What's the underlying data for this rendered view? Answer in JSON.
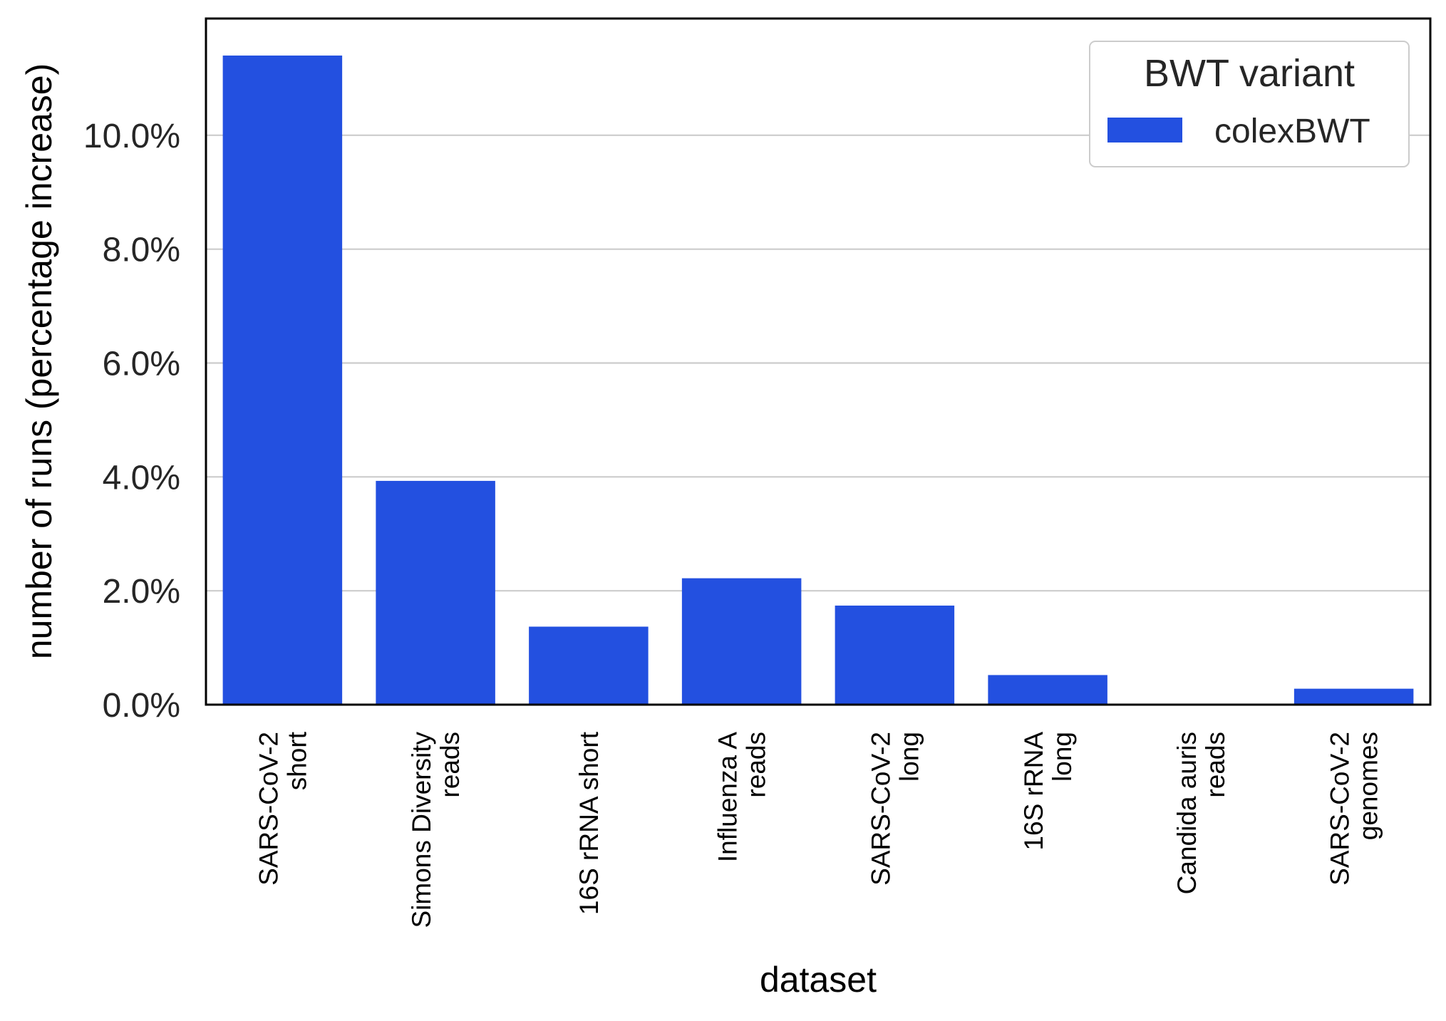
{
  "chart_data": {
    "type": "bar",
    "xlabel": "dataset",
    "ylabel": "number of runs (percentage increase)",
    "categories": [
      [
        "SARS-CoV-2",
        "short"
      ],
      [
        "Simons Diversity",
        "reads"
      ],
      [
        "16S rRNA short"
      ],
      [
        "Influenza A",
        "reads"
      ],
      [
        "SARS-CoV-2",
        "long"
      ],
      [
        "16S rRNA",
        "long"
      ],
      [
        "Candida auris",
        "reads"
      ],
      [
        "SARS-CoV-2",
        "genomes"
      ]
    ],
    "series": [
      {
        "name": "colexBWT",
        "color": "#2350e0",
        "values": [
          11.4,
          3.93,
          1.37,
          2.22,
          1.74,
          0.52,
          0.0,
          0.28
        ]
      }
    ],
    "ylim": [
      0,
      12.05
    ],
    "yticks": [
      0,
      2,
      4,
      6,
      8,
      10
    ],
    "ytick_labels": [
      "0.0%",
      "2.0%",
      "4.0%",
      "6.0%",
      "8.0%",
      "10.0%"
    ],
    "grid": "horizontal",
    "legend": {
      "title": "BWT variant",
      "placement": "top-right"
    }
  }
}
